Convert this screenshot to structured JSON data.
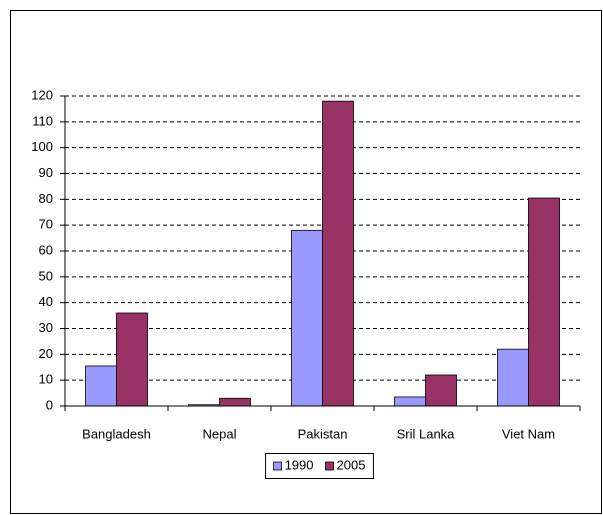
{
  "chart_data": {
    "type": "bar",
    "categories": [
      "Bangladesh",
      "Nepal",
      "Pakistan",
      "Sril Lanka",
      "Viet Nam"
    ],
    "series": [
      {
        "name": "1990",
        "color": "#9999ff",
        "values": [
          15.5,
          0.5,
          68,
          3.5,
          22
        ]
      },
      {
        "name": "2005",
        "color": "#993366",
        "values": [
          36,
          3,
          118,
          12,
          80.5
        ]
      }
    ],
    "ylim": [
      0,
      120
    ],
    "yticks": [
      0,
      10,
      20,
      30,
      40,
      50,
      60,
      70,
      80,
      90,
      100,
      110,
      120
    ],
    "grid": true,
    "legend": "bottom"
  }
}
